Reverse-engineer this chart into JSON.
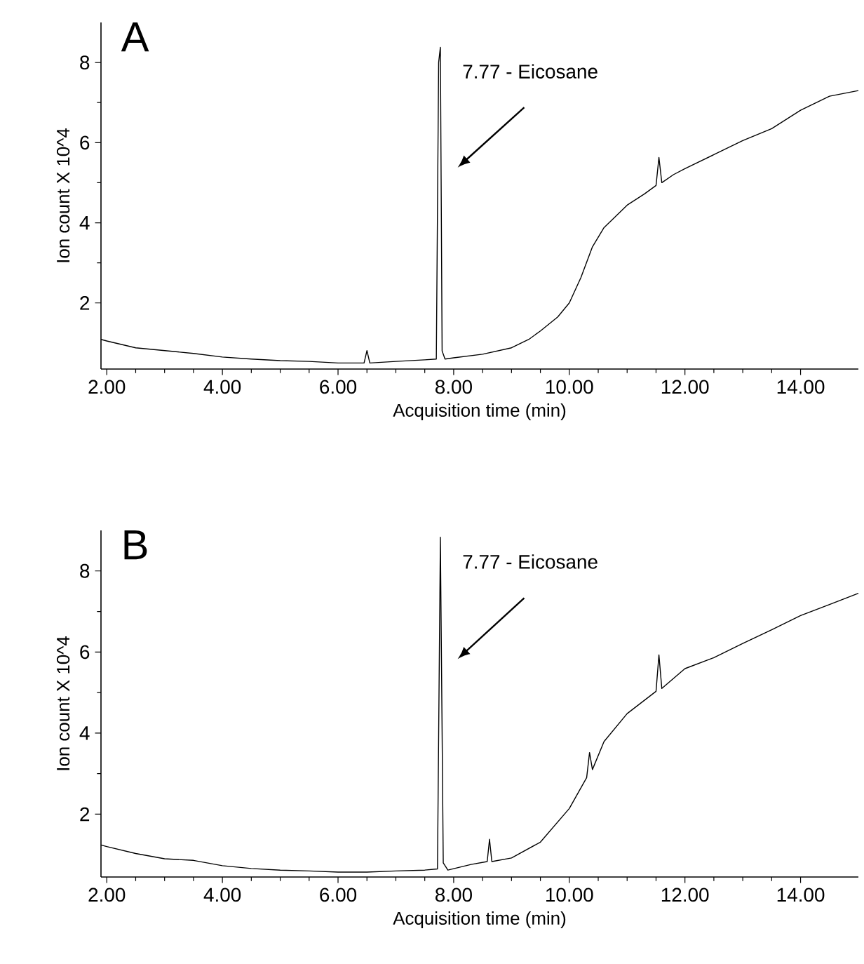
{
  "chart_data": [
    {
      "type": "line",
      "title": "A",
      "xlabel": "Acquisition time (min)",
      "ylabel": "Ion count X 10^4",
      "x": [
        1.9,
        2.0,
        2.5,
        3.0,
        3.5,
        4.0,
        4.5,
        5.0,
        5.5,
        6.0,
        6.45,
        6.5,
        6.55,
        7.0,
        7.5,
        7.7,
        7.74,
        7.77,
        7.8,
        7.85,
        8.0,
        8.5,
        9.0,
        9.3,
        9.5,
        9.8,
        10.0,
        10.2,
        10.4,
        10.6,
        10.8,
        11.0,
        11.3,
        11.5,
        11.55,
        11.6,
        11.8,
        12.0,
        12.5,
        13.0,
        13.5,
        14.0,
        14.5,
        15.0
      ],
      "series": [
        {
          "color": "#000000",
          "values": [
            1.09,
            1.05,
            0.88,
            0.81,
            0.74,
            0.65,
            0.6,
            0.56,
            0.54,
            0.5,
            0.5,
            0.81,
            0.5,
            0.54,
            0.58,
            0.6,
            8.0,
            8.38,
            0.8,
            0.6,
            0.63,
            0.72,
            0.88,
            1.09,
            1.3,
            1.65,
            2.0,
            2.63,
            3.4,
            3.88,
            4.16,
            4.44,
            4.72,
            4.93,
            5.63,
            5.0,
            5.2,
            5.35,
            5.7,
            6.05,
            6.35,
            6.81,
            7.16,
            7.3
          ]
        }
      ],
      "xlim": [
        1.9,
        15.0
      ],
      "ylim": [
        0.35,
        9.0
      ],
      "xticks": [
        {
          "value": 2,
          "label": "2.00"
        },
        {
          "value": 4,
          "label": "4.00"
        },
        {
          "value": 6,
          "label": "6.00"
        },
        {
          "value": 8,
          "label": "8.00"
        },
        {
          "value": 10,
          "label": "10.00"
        },
        {
          "value": 12,
          "label": "12.00"
        },
        {
          "value": 14,
          "label": "14.00"
        }
      ],
      "yticks": [
        2,
        4,
        6,
        8
      ],
      "grid": false,
      "marker": "none",
      "line_style": "solid",
      "annotations": [
        {
          "text": "7.77 - Eicosane",
          "x": 7.77,
          "y": 8.38
        }
      ]
    },
    {
      "type": "line",
      "title": "B",
      "xlabel": "Acquisition time (min)",
      "ylabel": "Ion count X 10^4",
      "x": [
        1.9,
        2.0,
        2.5,
        3.0,
        3.5,
        4.0,
        4.5,
        5.0,
        5.5,
        6.0,
        6.5,
        7.0,
        7.5,
        7.72,
        7.77,
        7.82,
        7.9,
        8.3,
        8.58,
        8.62,
        8.66,
        9.0,
        9.5,
        10.0,
        10.3,
        10.35,
        10.4,
        10.6,
        11.0,
        11.5,
        11.55,
        11.6,
        12.0,
        12.5,
        13.0,
        13.5,
        14.0,
        14.5,
        15.0
      ],
      "series": [
        {
          "color": "#000000",
          "values": [
            1.24,
            1.2,
            1.03,
            0.9,
            0.86,
            0.73,
            0.66,
            0.62,
            0.6,
            0.57,
            0.57,
            0.6,
            0.62,
            0.65,
            8.83,
            0.8,
            0.62,
            0.76,
            0.83,
            1.38,
            0.83,
            0.92,
            1.31,
            2.14,
            2.9,
            3.52,
            3.1,
            3.79,
            4.48,
            5.03,
            5.93,
            5.1,
            5.59,
            5.86,
            6.21,
            6.55,
            6.9,
            7.17,
            7.45
          ]
        }
      ],
      "xlim": [
        1.9,
        15.0
      ],
      "ylim": [
        0.45,
        9.0
      ],
      "xticks": [
        {
          "value": 2,
          "label": "2.00"
        },
        {
          "value": 4,
          "label": "4.00"
        },
        {
          "value": 6,
          "label": "6.00"
        },
        {
          "value": 8,
          "label": "8.00"
        },
        {
          "value": 10,
          "label": "10.00"
        },
        {
          "value": 12,
          "label": "12.00"
        },
        {
          "value": 14,
          "label": "14.00"
        }
      ],
      "yticks": [
        2,
        4,
        6,
        8
      ],
      "grid": false,
      "marker": "none",
      "line_style": "solid",
      "annotations": [
        {
          "text": "7.77 - Eicosane",
          "x": 7.77,
          "y": 8.83
        }
      ]
    }
  ]
}
